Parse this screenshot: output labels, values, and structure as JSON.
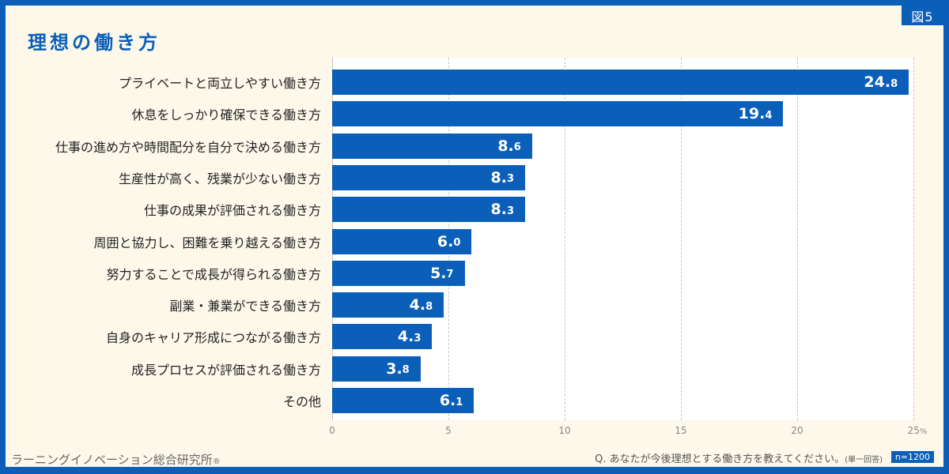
{
  "header": {
    "title": "理想の働き方",
    "figure_badge": "図5"
  },
  "footer": {
    "organization": "ラーニングイノベーション総合研究所",
    "registered_mark": "®",
    "question": "Q. あなたが今後理想とする働き方を教えてください。",
    "question_note": "(単一回答)",
    "sample_size": "n=1200"
  },
  "colors": {
    "accent": "#0b5fb8",
    "background": "#fdf8ea",
    "plot_background": "#ffffff"
  },
  "chart_data": {
    "type": "bar",
    "orientation": "horizontal",
    "title": "理想の働き方",
    "xlabel": "",
    "ylabel": "",
    "unit": "%",
    "xlim": [
      0,
      25
    ],
    "ticks": [
      "0",
      "5",
      "10",
      "15",
      "20",
      "25"
    ],
    "tick_unit": "%",
    "grid": "vertical dashed",
    "categories": [
      "プライベートと両立しやすい働き方",
      "休息をしっかり確保できる働き方",
      "仕事の進め方や時間配分を自分で決める働き方",
      "生産性が高く、残業が少ない働き方",
      "仕事の成果が評価される働き方",
      "周囲と協力し、困難を乗り越える働き方",
      "努力することで成長が得られる働き方",
      "副業・兼業ができる働き方",
      "自身のキャリア形成につながる働き方",
      "成長プロセスが評価される働き方",
      "その他"
    ],
    "values": [
      24.8,
      19.4,
      8.6,
      8.3,
      8.3,
      6.0,
      5.7,
      4.8,
      4.3,
      3.8,
      6.1
    ],
    "value_labels": [
      {
        "int": "24.",
        "dec": "8"
      },
      {
        "int": "19.",
        "dec": "4"
      },
      {
        "int": "8.",
        "dec": "6"
      },
      {
        "int": "8.",
        "dec": "3"
      },
      {
        "int": "8.",
        "dec": "3"
      },
      {
        "int": "6.",
        "dec": "0"
      },
      {
        "int": "5.",
        "dec": "7"
      },
      {
        "int": "4.",
        "dec": "8"
      },
      {
        "int": "4.",
        "dec": "3"
      },
      {
        "int": "3.",
        "dec": "8"
      },
      {
        "int": "6.",
        "dec": "1"
      }
    ],
    "n": 1200
  }
}
